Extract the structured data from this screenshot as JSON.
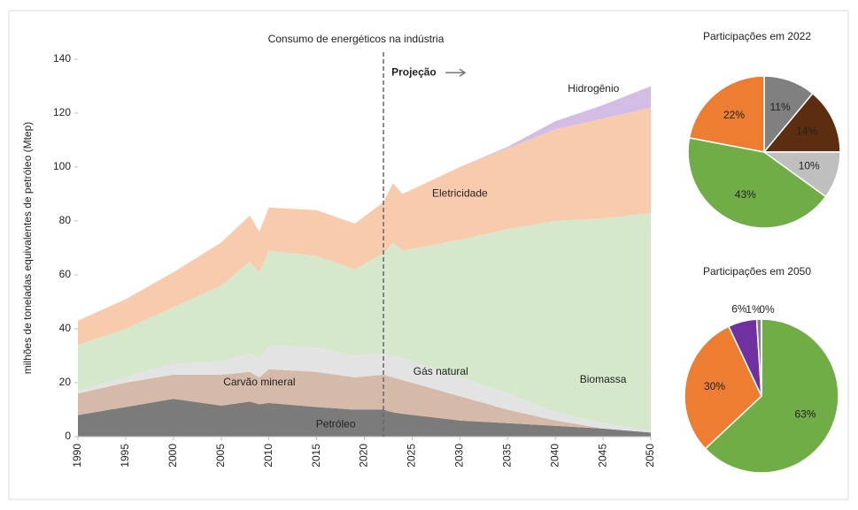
{
  "chart_data": [
    {
      "type": "stacked_area",
      "title": "Consumo de energéticos na indústria",
      "y_label": "milhões de toneladas equivalentes de petróleo (Mtep)",
      "annotation": {
        "text": "Projeção",
        "x": 2022
      },
      "x": [
        1990,
        1995,
        2000,
        2005,
        2008,
        2009,
        2010,
        2015,
        2019,
        2022,
        2023,
        2024,
        2030,
        2035,
        2040,
        2045,
        2050
      ],
      "series": [
        {
          "name": "Petróleo",
          "color": "#7b7b7b",
          "label_color": "#ffffff",
          "values": [
            8,
            11,
            14,
            11.5,
            13,
            12,
            12.5,
            11,
            10,
            10,
            9,
            8.5,
            6,
            5,
            4,
            3,
            1.5
          ]
        },
        {
          "name": "Carvão mineral",
          "color": "#d5b9a9",
          "label_color": "#8b4513",
          "values": [
            8,
            9,
            9,
            11.5,
            11,
            10,
            12.5,
            13,
            12,
            13,
            13,
            12.5,
            9,
            5,
            2,
            0,
            0
          ]
        },
        {
          "name": "Gás natural",
          "color": "#e3e3e3",
          "label_color": "#333333",
          "values": [
            1,
            2,
            4,
            5,
            7,
            7,
            9,
            9,
            8,
            8,
            8,
            8,
            7,
            6,
            3,
            2,
            0.5
          ]
        },
        {
          "name": "Biomassa",
          "color": "#d5e8cc",
          "label_color": "#4f8a34",
          "values": [
            17,
            18,
            21,
            28,
            34,
            32,
            35,
            34,
            32,
            37,
            42,
            40,
            51,
            61,
            71,
            76,
            81
          ]
        },
        {
          "name": "Eletricidade",
          "color": "#f8cbad",
          "label_color": "#b5522a",
          "values": [
            9,
            11,
            13,
            16,
            17,
            15,
            16,
            17,
            17,
            19,
            22,
            21,
            27,
            30,
            34,
            37,
            39
          ]
        },
        {
          "name": "Hidrogênio",
          "color": "#d3bde5",
          "label_color": "#7030a0",
          "values": [
            0,
            0,
            0,
            0,
            0,
            0,
            0,
            0,
            0,
            0,
            0,
            0,
            0,
            0.5,
            3,
            5,
            8
          ]
        }
      ],
      "xlim": [
        1990,
        2050
      ],
      "xticks": [
        1990,
        1995,
        2000,
        2005,
        2010,
        2015,
        2020,
        2025,
        2030,
        2035,
        2040,
        2045,
        2050
      ],
      "ylim": [
        0,
        140
      ],
      "yticks": [
        0,
        20,
        40,
        60,
        80,
        100,
        120,
        140
      ],
      "grid": false
    },
    {
      "type": "pie",
      "title": "Participações em 2022",
      "values": [
        11,
        14,
        10,
        43,
        22
      ],
      "value_labels": [
        "11%",
        "14%",
        "10%",
        "43%",
        "22%"
      ],
      "colors": [
        "#808080",
        "#5c2d0e",
        "#bfbfbf",
        "#70ad47",
        "#ed7d31"
      ]
    },
    {
      "type": "pie",
      "title": "Participações em 2050",
      "values": [
        63,
        30,
        6,
        1,
        0
      ],
      "value_labels": [
        "63%",
        "30%",
        "6%",
        "1%",
        "0%"
      ],
      "colors": [
        "#70ad47",
        "#ed7d31",
        "#7030a0",
        "#808080",
        "#bfbfbf"
      ]
    }
  ]
}
